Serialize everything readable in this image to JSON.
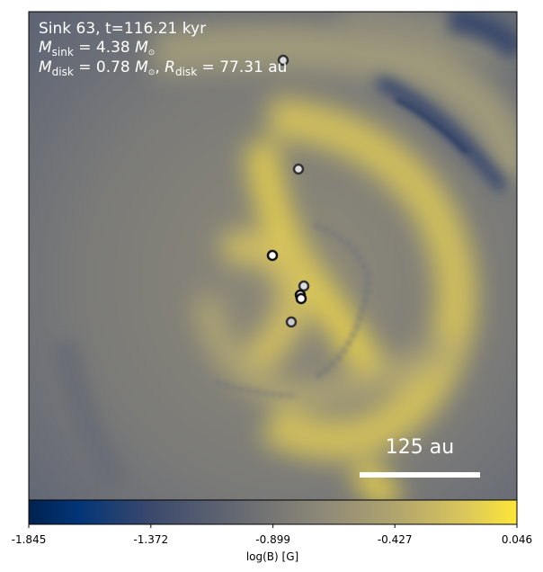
{
  "chart_data": {
    "type": "heatmap",
    "title_lines": {
      "line1": "Sink 63, t=116.21 kyr",
      "msink_symbol": "M",
      "msink_sub": "sink",
      "msink_value": " = 4.38 ",
      "msun": "M",
      "mdisk_symbol": "M",
      "mdisk_sub": "disk",
      "mdisk_value": " = 0.78 ",
      "rdisk_symbol": "R",
      "rdisk_sub": "disk",
      "rdisk_value": " = 77.31 au",
      "comma": ", "
    },
    "quantity": "log(B) [G]",
    "colormap": "cividis",
    "colorbar": {
      "label": "log(B) [G]",
      "range": [
        -1.845,
        0.046
      ],
      "ticks": [
        "-1.845",
        "-1.372",
        "-0.899",
        "-0.427",
        "0.046"
      ],
      "tick_values": [
        -1.845,
        -1.372,
        -0.899,
        -0.427,
        0.046
      ]
    },
    "scale_bar": {
      "label": "125 au",
      "length_au": 125
    },
    "sink_count": 7,
    "colors": {
      "low": "#00224e",
      "mid": "#7c7b78",
      "high": "#fee838"
    }
  }
}
